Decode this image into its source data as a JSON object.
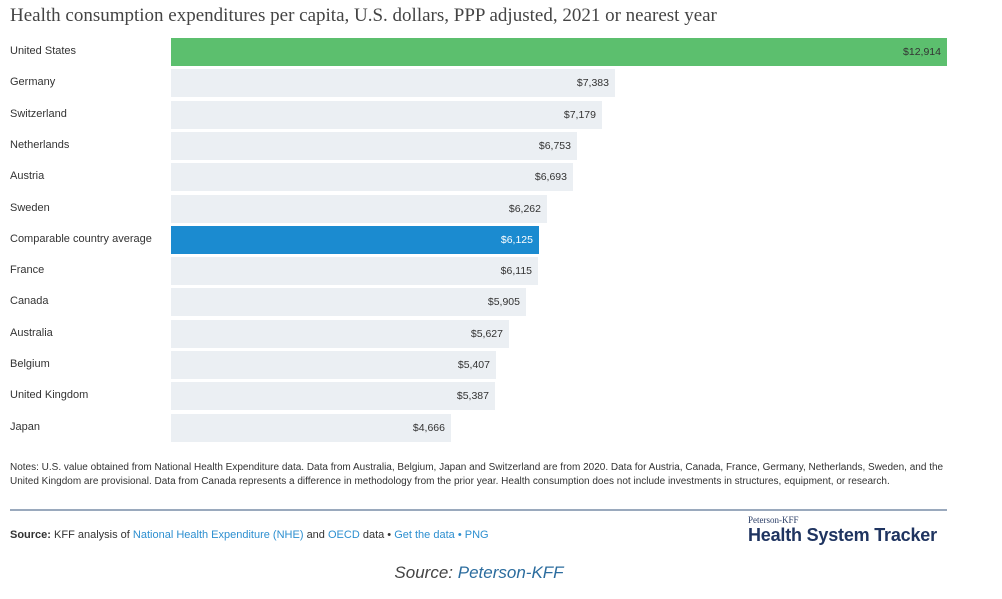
{
  "chart_data": {
    "type": "bar",
    "orientation": "horizontal",
    "title": "Health consumption expenditures per capita, U.S. dollars, PPP adjusted, 2021 or nearest year",
    "categories": [
      "United States",
      "Germany",
      "Switzerland",
      "Netherlands",
      "Austria",
      "Sweden",
      "Comparable country average",
      "France",
      "Canada",
      "Australia",
      "Belgium",
      "United Kingdom",
      "Japan"
    ],
    "values": [
      12914,
      7383,
      7179,
      6753,
      6693,
      6262,
      6125,
      6115,
      5905,
      5627,
      5407,
      5387,
      4666
    ],
    "value_labels": [
      "$12,914",
      "$7,383",
      "$7,179",
      "$6,753",
      "$6,693",
      "$6,262",
      "$6,125",
      "$6,115",
      "$5,905",
      "$5,627",
      "$5,407",
      "$5,387",
      "$4,666"
    ],
    "highlight": {
      "United States": "#5cbf6e",
      "Comparable country average": "#1b8bd0"
    },
    "default_color": "#ebeff3",
    "xlim": [
      0,
      12914
    ],
    "grid": false
  },
  "notes": "Notes: U.S. value obtained from National Health Expenditure data. Data from Australia, Belgium, Japan and Switzerland are from 2020. Data for Austria, Canada, France, Germany, Netherlands, Sweden, and the United Kingdom are provisional. Data from Canada represents a difference in methodology from the prior year. Health consumption does not include investments in structures, equipment, or research.",
  "source": {
    "label": "Source:",
    "text_1": "KFF analysis of",
    "link_nhe": "National Health Expenditure (NHE)",
    "text_2": "and",
    "link_oecd": "OECD",
    "text_3": "data •",
    "link_data": "Get the data",
    "sep": "•",
    "link_png": "PNG"
  },
  "brand": {
    "small": "Peterson-KFF",
    "main": "Health System Tracker"
  },
  "caption": {
    "prefix": "Source:",
    "link": "Peterson-KFF"
  }
}
